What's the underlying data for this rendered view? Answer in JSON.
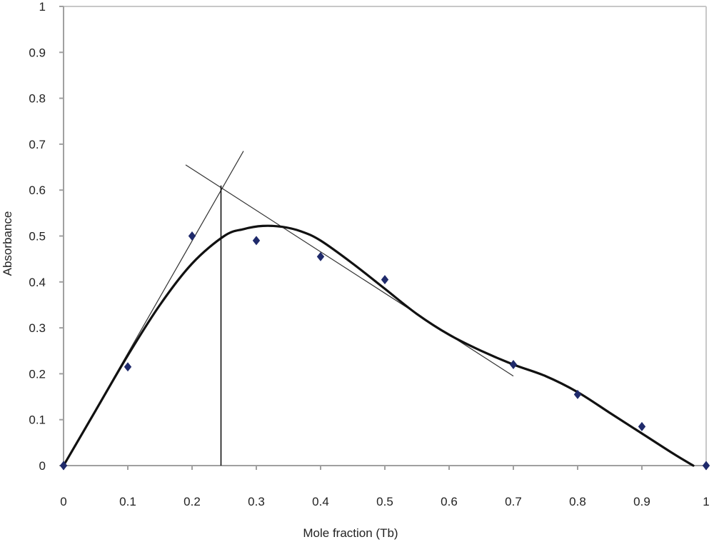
{
  "chart_data": {
    "type": "scatter",
    "title": "",
    "xlabel": "Mole fraction (Tb)",
    "ylabel": "Absorbance",
    "xlim": [
      0,
      1
    ],
    "ylim": [
      0,
      1
    ],
    "x_ticks": [
      0,
      0.1,
      0.2,
      0.3,
      0.4,
      0.5,
      0.6,
      0.7,
      0.8,
      0.9,
      1
    ],
    "x_tick_labels": [
      "0",
      "0.1",
      "0.2",
      "0.3",
      "0.4",
      "0.5",
      "0.6",
      "0.7",
      "0.8",
      "0.9",
      "1"
    ],
    "y_ticks": [
      0,
      0.1,
      0.2,
      0.3,
      0.4,
      0.5,
      0.6,
      0.7,
      0.8,
      0.9,
      1
    ],
    "y_tick_labels": [
      "0",
      "0.1",
      "0.2",
      "0.3",
      "0.4",
      "0.5",
      "0.6",
      "0.7",
      "0.8",
      "0.9",
      "1"
    ],
    "grid": false,
    "legend": "none",
    "series": [
      {
        "marker": "diamond",
        "color": "#1f2a6b",
        "x": [
          0,
          0.1,
          0.2,
          0.3,
          0.4,
          0.5,
          0.7,
          0.8,
          0.9,
          1.0
        ],
        "y": [
          0,
          0.215,
          0.5,
          0.49,
          0.455,
          0.405,
          0.22,
          0.155,
          0.085,
          0
        ]
      }
    ],
    "fit_curve": {
      "color": "#111111",
      "x": [
        0,
        0.05,
        0.1,
        0.15,
        0.2,
        0.25,
        0.28,
        0.31,
        0.34,
        0.37,
        0.4,
        0.45,
        0.5,
        0.55,
        0.6,
        0.65,
        0.7,
        0.75,
        0.8,
        0.85,
        0.9,
        0.95,
        0.98
      ],
      "y": [
        0,
        0.12,
        0.24,
        0.35,
        0.44,
        0.5,
        0.515,
        0.522,
        0.52,
        0.51,
        0.49,
        0.44,
        0.385,
        0.33,
        0.285,
        0.25,
        0.22,
        0.195,
        0.16,
        0.115,
        0.07,
        0.025,
        0
      ]
    },
    "tangent_lines": [
      {
        "x": [
          0,
          0.28
        ],
        "y": [
          0,
          0.685
        ]
      },
      {
        "x": [
          0.19,
          0.7
        ],
        "y": [
          0.655,
          0.195
        ]
      }
    ],
    "intersection_line": {
      "x": 0.245,
      "y": [
        0,
        0.61
      ]
    },
    "axis_color": "#a0a0a0",
    "frame_color": "#c8c8c8"
  }
}
